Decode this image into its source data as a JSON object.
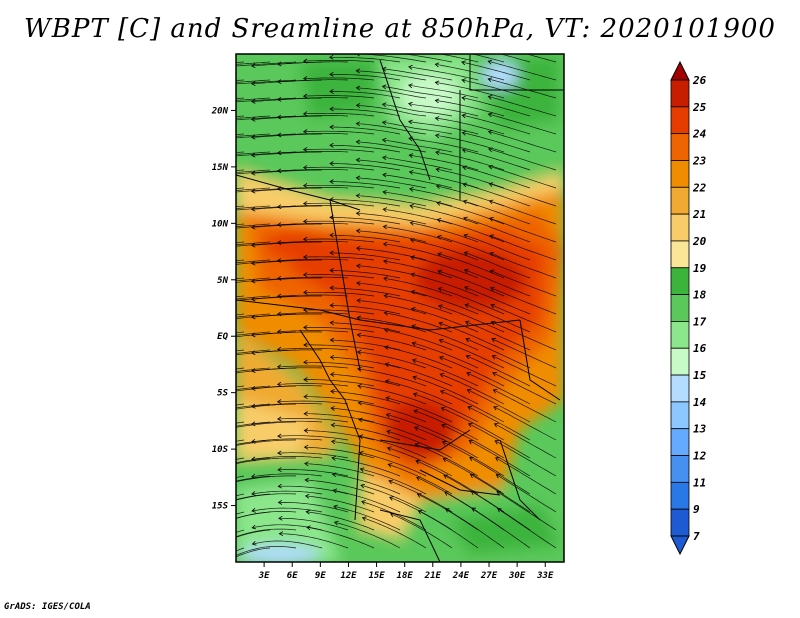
{
  "title": "WBPT [C] and Sreamline at 850hPa, VT: 2020101900",
  "credit": "GrADS: IGES/COLA",
  "map": {
    "lat_labels": [
      "20N",
      "15N",
      "10N",
      "5N",
      "EQ",
      "5S",
      "10S",
      "15S"
    ],
    "lat_values": [
      20,
      15,
      10,
      5,
      0,
      -5,
      -10,
      -15
    ],
    "lon_labels": [
      "3E",
      "6E",
      "9E",
      "12E",
      "15E",
      "18E",
      "21E",
      "24E",
      "27E",
      "30E",
      "33E"
    ],
    "lon_values": [
      3,
      6,
      9,
      12,
      15,
      18,
      21,
      24,
      27,
      30,
      33
    ],
    "lon_range": [
      0,
      35
    ],
    "lat_range": [
      -20,
      25
    ]
  },
  "colorbar": {
    "labels": [
      "26",
      "25",
      "24",
      "23",
      "22",
      "21",
      "20",
      "19",
      "18",
      "17",
      "16",
      "15",
      "14",
      "13",
      "12",
      "11",
      "9",
      "7"
    ],
    "colors": [
      "#a50000",
      "#c81e00",
      "#e63c00",
      "#ee6400",
      "#f08c00",
      "#f0aa32",
      "#f8cd69",
      "#fae696",
      "#3cb43c",
      "#5ac85a",
      "#8ce68c",
      "#c8fac8",
      "#b4dcff",
      "#8cc8ff",
      "#64aaff",
      "#4690f0",
      "#2878e6",
      "#1e5ad2"
    ]
  }
}
